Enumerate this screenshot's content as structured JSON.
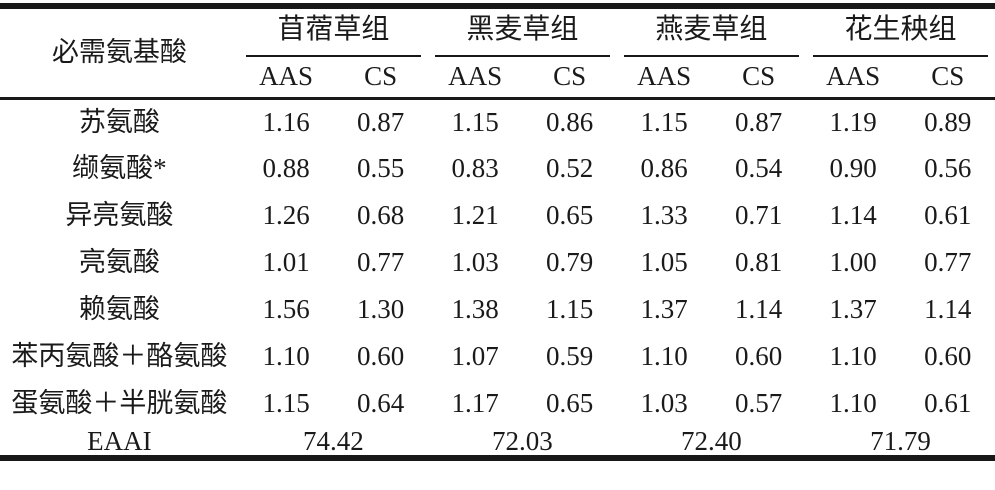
{
  "table": {
    "row_header_title": "必需氨基酸",
    "groups": [
      {
        "label": "苜蓿草组"
      },
      {
        "label": "黑麦草组"
      },
      {
        "label": "燕麦草组"
      },
      {
        "label": "花生秧组"
      }
    ],
    "sub_headers": [
      "AAS",
      "CS"
    ],
    "rows": [
      {
        "label": "苏氨酸",
        "values": [
          "1.16",
          "0.87",
          "1.15",
          "0.86",
          "1.15",
          "0.87",
          "1.19",
          "0.89"
        ]
      },
      {
        "label": "缬氨酸*",
        "values": [
          "0.88",
          "0.55",
          "0.83",
          "0.52",
          "0.86",
          "0.54",
          "0.90",
          "0.56"
        ]
      },
      {
        "label": "异亮氨酸",
        "values": [
          "1.26",
          "0.68",
          "1.21",
          "0.65",
          "1.33",
          "0.71",
          "1.14",
          "0.61"
        ]
      },
      {
        "label": "亮氨酸",
        "values": [
          "1.01",
          "0.77",
          "1.03",
          "0.79",
          "1.05",
          "0.81",
          "1.00",
          "0.77"
        ]
      },
      {
        "label": "赖氨酸",
        "values": [
          "1.56",
          "1.30",
          "1.38",
          "1.15",
          "1.37",
          "1.14",
          "1.37",
          "1.14"
        ]
      },
      {
        "label": "苯丙氨酸＋酪氨酸",
        "values": [
          "1.10",
          "0.60",
          "1.07",
          "0.59",
          "1.10",
          "0.60",
          "1.10",
          "0.60"
        ]
      },
      {
        "label": "蛋氨酸＋半胱氨酸",
        "values": [
          "1.15",
          "0.64",
          "1.17",
          "0.65",
          "1.03",
          "0.57",
          "1.10",
          "0.61"
        ]
      }
    ],
    "footer": {
      "label": "EAAI",
      "values": [
        "74.42",
        "72.03",
        "72.40",
        "71.79"
      ]
    }
  },
  "colors": {
    "text": "#1a1a1a",
    "rule": "#181818",
    "background": "#ffffff"
  }
}
